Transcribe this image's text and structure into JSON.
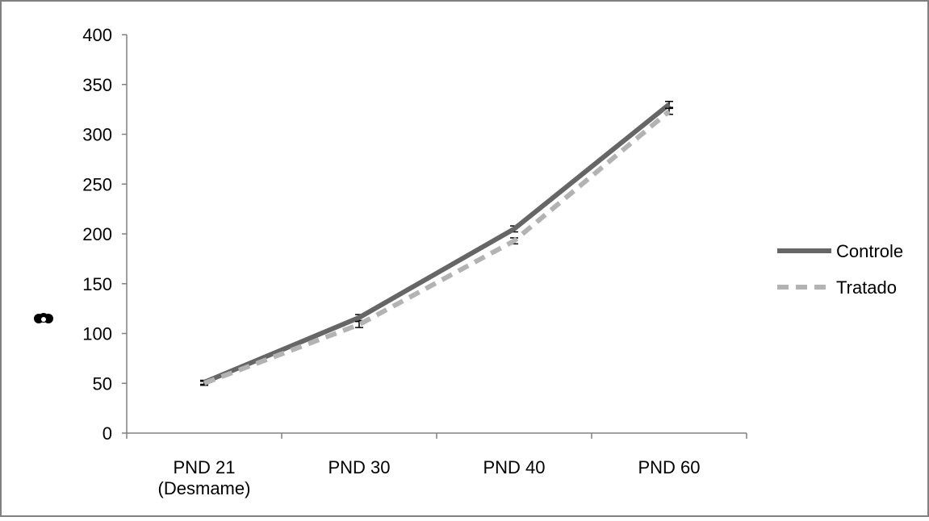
{
  "chart_data": {
    "type": "line",
    "title": "",
    "xlabel": "",
    "ylabel": "",
    "categories": [
      [
        "PND 21",
        "(Desmame)"
      ],
      [
        "PND 30"
      ],
      [
        "PND 40"
      ],
      [
        "PND 60"
      ]
    ],
    "y_ticks": [
      "0",
      "50",
      "100",
      "150",
      "200",
      "250",
      "300",
      "350",
      "400"
    ],
    "ylim": [
      0,
      400
    ],
    "grid": false,
    "legend_position": "right",
    "series": [
      {
        "name": "Controle",
        "values": [
          51,
          116,
          205,
          330
        ],
        "errors": [
          2,
          3,
          3,
          3
        ],
        "color": "#666666",
        "style": "solid"
      },
      {
        "name": "Tratado",
        "values": [
          50,
          109,
          193,
          323
        ],
        "errors": [
          2,
          3,
          3,
          3
        ],
        "color": "#b3b3b3",
        "style": "dashed"
      }
    ]
  }
}
